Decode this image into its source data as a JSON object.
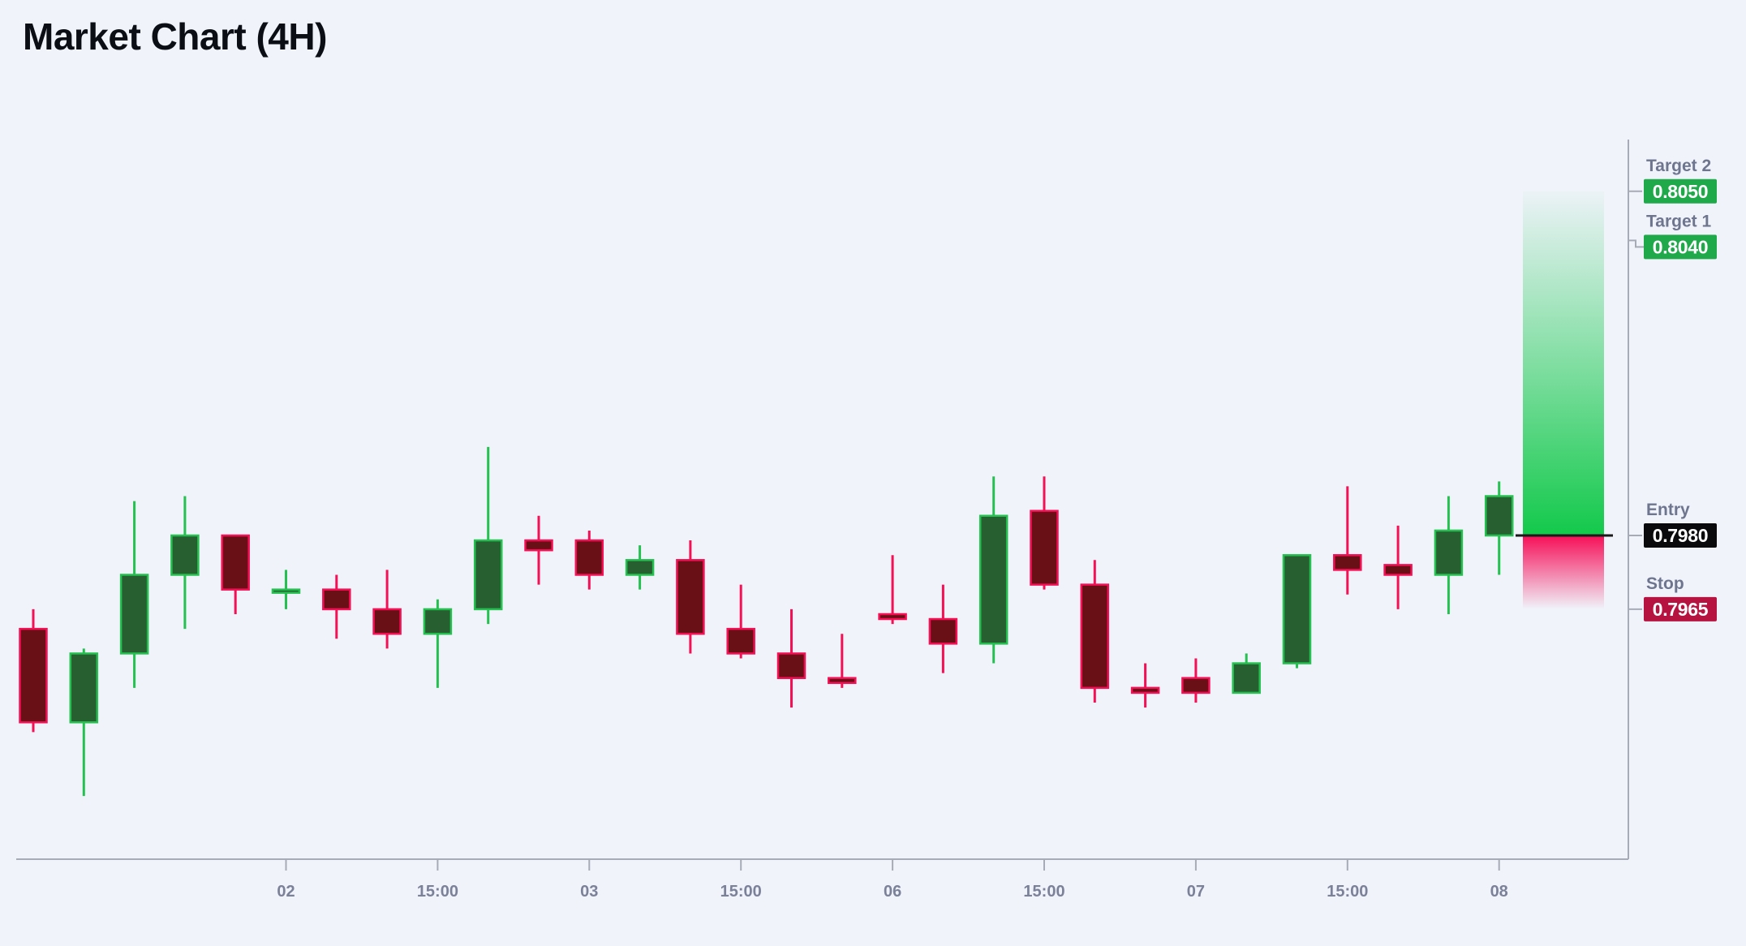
{
  "page": {
    "title": "Market Chart (4H)"
  },
  "colors": {
    "background": "#f0f3fa",
    "title_text": "#0b0e14",
    "axis_line": "#a7abb6",
    "tick_text": "#7b8198",
    "level_label_text": "#6e758e",
    "candle_up_border": "#25c150",
    "candle_up_fill": "#275f31",
    "candle_down_border": "#f50f54",
    "candle_down_fill": "#691016",
    "zone_green": "#13c94b",
    "zone_red": "#f60f58",
    "badge_green": "#1fa94a",
    "badge_black": "#0a0a0c",
    "badge_red": "#b61340",
    "badge_text": "#ffffff",
    "entry_line": "#1a1a1a"
  },
  "chart_data": {
    "type": "candlestick",
    "title": "Market Chart (4H)",
    "timeframe": "4H",
    "x_axis": {
      "labels": [
        {
          "i": 5,
          "t": "02"
        },
        {
          "i": 8,
          "t": "15:00"
        },
        {
          "i": 11,
          "t": "03"
        },
        {
          "i": 14,
          "t": "15:00"
        },
        {
          "i": 17,
          "t": "06"
        },
        {
          "i": 20,
          "t": "15:00"
        },
        {
          "i": 23,
          "t": "07"
        },
        {
          "i": 26,
          "t": "15:00"
        },
        {
          "i": 29,
          "t": "08"
        }
      ]
    },
    "candles": [
      {
        "o": 0.7961,
        "h": 0.7965,
        "l": 0.794,
        "c": 0.7942
      },
      {
        "o": 0.7942,
        "h": 0.7957,
        "l": 0.7927,
        "c": 0.7956
      },
      {
        "o": 0.7956,
        "h": 0.7987,
        "l": 0.7949,
        "c": 0.7972
      },
      {
        "o": 0.7972,
        "h": 0.7988,
        "l": 0.7961,
        "c": 0.798
      },
      {
        "o": 0.798,
        "h": 0.798,
        "l": 0.7964,
        "c": 0.7969
      },
      {
        "o": 0.7969,
        "h": 0.7973,
        "l": 0.7965,
        "c": 0.7969
      },
      {
        "o": 0.7969,
        "h": 0.7972,
        "l": 0.7959,
        "c": 0.7965
      },
      {
        "o": 0.7965,
        "h": 0.7973,
        "l": 0.7957,
        "c": 0.796
      },
      {
        "o": 0.796,
        "h": 0.7967,
        "l": 0.7949,
        "c": 0.7965
      },
      {
        "o": 0.7965,
        "h": 0.7998,
        "l": 0.7962,
        "c": 0.7979
      },
      {
        "o": 0.7979,
        "h": 0.7984,
        "l": 0.797,
        "c": 0.7977
      },
      {
        "o": 0.7979,
        "h": 0.7981,
        "l": 0.7969,
        "c": 0.7972
      },
      {
        "o": 0.7972,
        "h": 0.7978,
        "l": 0.7969,
        "c": 0.7975
      },
      {
        "o": 0.7975,
        "h": 0.7979,
        "l": 0.7956,
        "c": 0.796
      },
      {
        "o": 0.7961,
        "h": 0.797,
        "l": 0.7955,
        "c": 0.7956
      },
      {
        "o": 0.7956,
        "h": 0.7965,
        "l": 0.7945,
        "c": 0.7951
      },
      {
        "o": 0.7951,
        "h": 0.796,
        "l": 0.7949,
        "c": 0.795
      },
      {
        "o": 0.7964,
        "h": 0.7976,
        "l": 0.7962,
        "c": 0.7963
      },
      {
        "o": 0.7963,
        "h": 0.797,
        "l": 0.7952,
        "c": 0.7958
      },
      {
        "o": 0.7958,
        "h": 0.7992,
        "l": 0.7954,
        "c": 0.7984
      },
      {
        "o": 0.7985,
        "h": 0.7992,
        "l": 0.7969,
        "c": 0.797
      },
      {
        "o": 0.797,
        "h": 0.7975,
        "l": 0.7946,
        "c": 0.7949
      },
      {
        "o": 0.7949,
        "h": 0.7954,
        "l": 0.7945,
        "c": 0.7948
      },
      {
        "o": 0.7951,
        "h": 0.7955,
        "l": 0.7946,
        "c": 0.7948
      },
      {
        "o": 0.7948,
        "h": 0.7956,
        "l": 0.7948,
        "c": 0.7954
      },
      {
        "o": 0.7954,
        "h": 0.7976,
        "l": 0.7953,
        "c": 0.7976
      },
      {
        "o": 0.7976,
        "h": 0.799,
        "l": 0.7968,
        "c": 0.7973
      },
      {
        "o": 0.7974,
        "h": 0.7982,
        "l": 0.7965,
        "c": 0.7972
      },
      {
        "o": 0.7972,
        "h": 0.7988,
        "l": 0.7964,
        "c": 0.7981
      },
      {
        "o": 0.798,
        "h": 0.7991,
        "l": 0.7972,
        "c": 0.7988
      }
    ],
    "levels": [
      {
        "id": "target2",
        "label": "Target 2",
        "value": 0.805,
        "display": "0.8050",
        "color_key": "badge_green"
      },
      {
        "id": "target1",
        "label": "Target 1",
        "value": 0.804,
        "display": "0.8040",
        "color_key": "badge_green"
      },
      {
        "id": "entry",
        "label": "Entry",
        "value": 0.798,
        "display": "0.7980",
        "color_key": "badge_black"
      },
      {
        "id": "stop",
        "label": "Stop",
        "value": 0.7965,
        "display": "0.7965",
        "color_key": "badge_red"
      }
    ],
    "trade_zone": {
      "upper_from": 0.798,
      "upper_to": 0.805,
      "lower_from": 0.7965,
      "lower_to": 0.798
    }
  }
}
